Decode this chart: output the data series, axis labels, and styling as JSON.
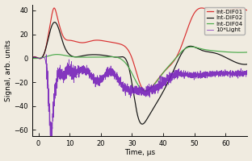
{
  "title": "",
  "xlabel": "Time, μs",
  "ylabel": "Signal, arb. units",
  "xlim": [
    -2,
    67
  ],
  "ylim": [
    -65,
    45
  ],
  "yticks": [
    -60,
    -40,
    -20,
    0,
    20,
    40
  ],
  "xticks": [
    0,
    10,
    20,
    30,
    40,
    50,
    60
  ],
  "legend_entries": [
    "Int-DIF01",
    "Int-DIF02",
    "Int-DIF04",
    "10*Light"
  ],
  "colors": {
    "DIF01": "#d93030",
    "DIF02": "#111111",
    "DIF04": "#4aaa4a",
    "Light": "#7722bb"
  },
  "background": "#f0ebe0"
}
